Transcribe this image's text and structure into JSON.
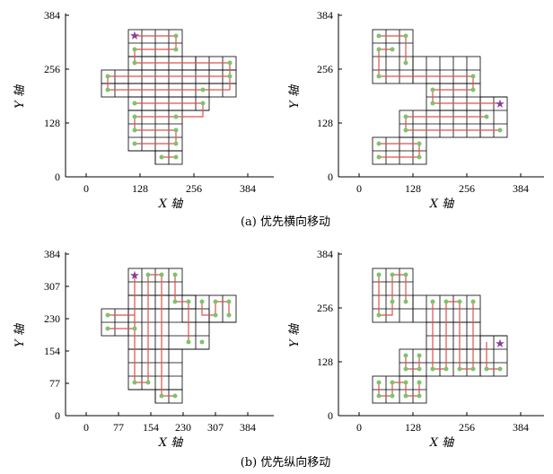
{
  "colors": {
    "grid_line": "#000000",
    "path": "#e0504a",
    "node": "#7cc46a",
    "start_marker": "#8e3c9a",
    "axis": "#000000"
  },
  "captions": {
    "a": "(a) 优先横向移动",
    "b": "(b) 优先纵向移动"
  },
  "panels": [
    {
      "id": "a-left",
      "x_axis_title": "X 轴",
      "y_axis_title": "Y 轴",
      "x_ticks": [
        "0",
        "128",
        "256",
        "384"
      ],
      "y_ticks": [
        "0",
        "128",
        "256",
        "384"
      ],
      "start_marker": "star-icon"
    },
    {
      "id": "a-right",
      "x_axis_title": "X 轴",
      "y_axis_title": "Y 轴",
      "x_ticks": [
        "0",
        "128",
        "256",
        "384"
      ],
      "y_ticks": [
        "0",
        "128",
        "256",
        "384"
      ],
      "start_marker": "star-icon"
    },
    {
      "id": "b-left",
      "x_axis_title": "X 轴",
      "y_axis_title": "Y 轴",
      "x_ticks": [
        "0",
        "77",
        "154",
        "230",
        "307",
        "384"
      ],
      "y_ticks": [
        "0",
        "77",
        "154",
        "230",
        "307",
        "384"
      ],
      "start_marker": "star-icon"
    },
    {
      "id": "b-right",
      "x_axis_title": "X 轴",
      "y_axis_title": "Y 轴",
      "x_ticks": [
        "0",
        "128",
        "256",
        "384"
      ],
      "y_ticks": [
        "0",
        "128",
        "256",
        "384"
      ],
      "start_marker": "star-icon"
    }
  ]
}
